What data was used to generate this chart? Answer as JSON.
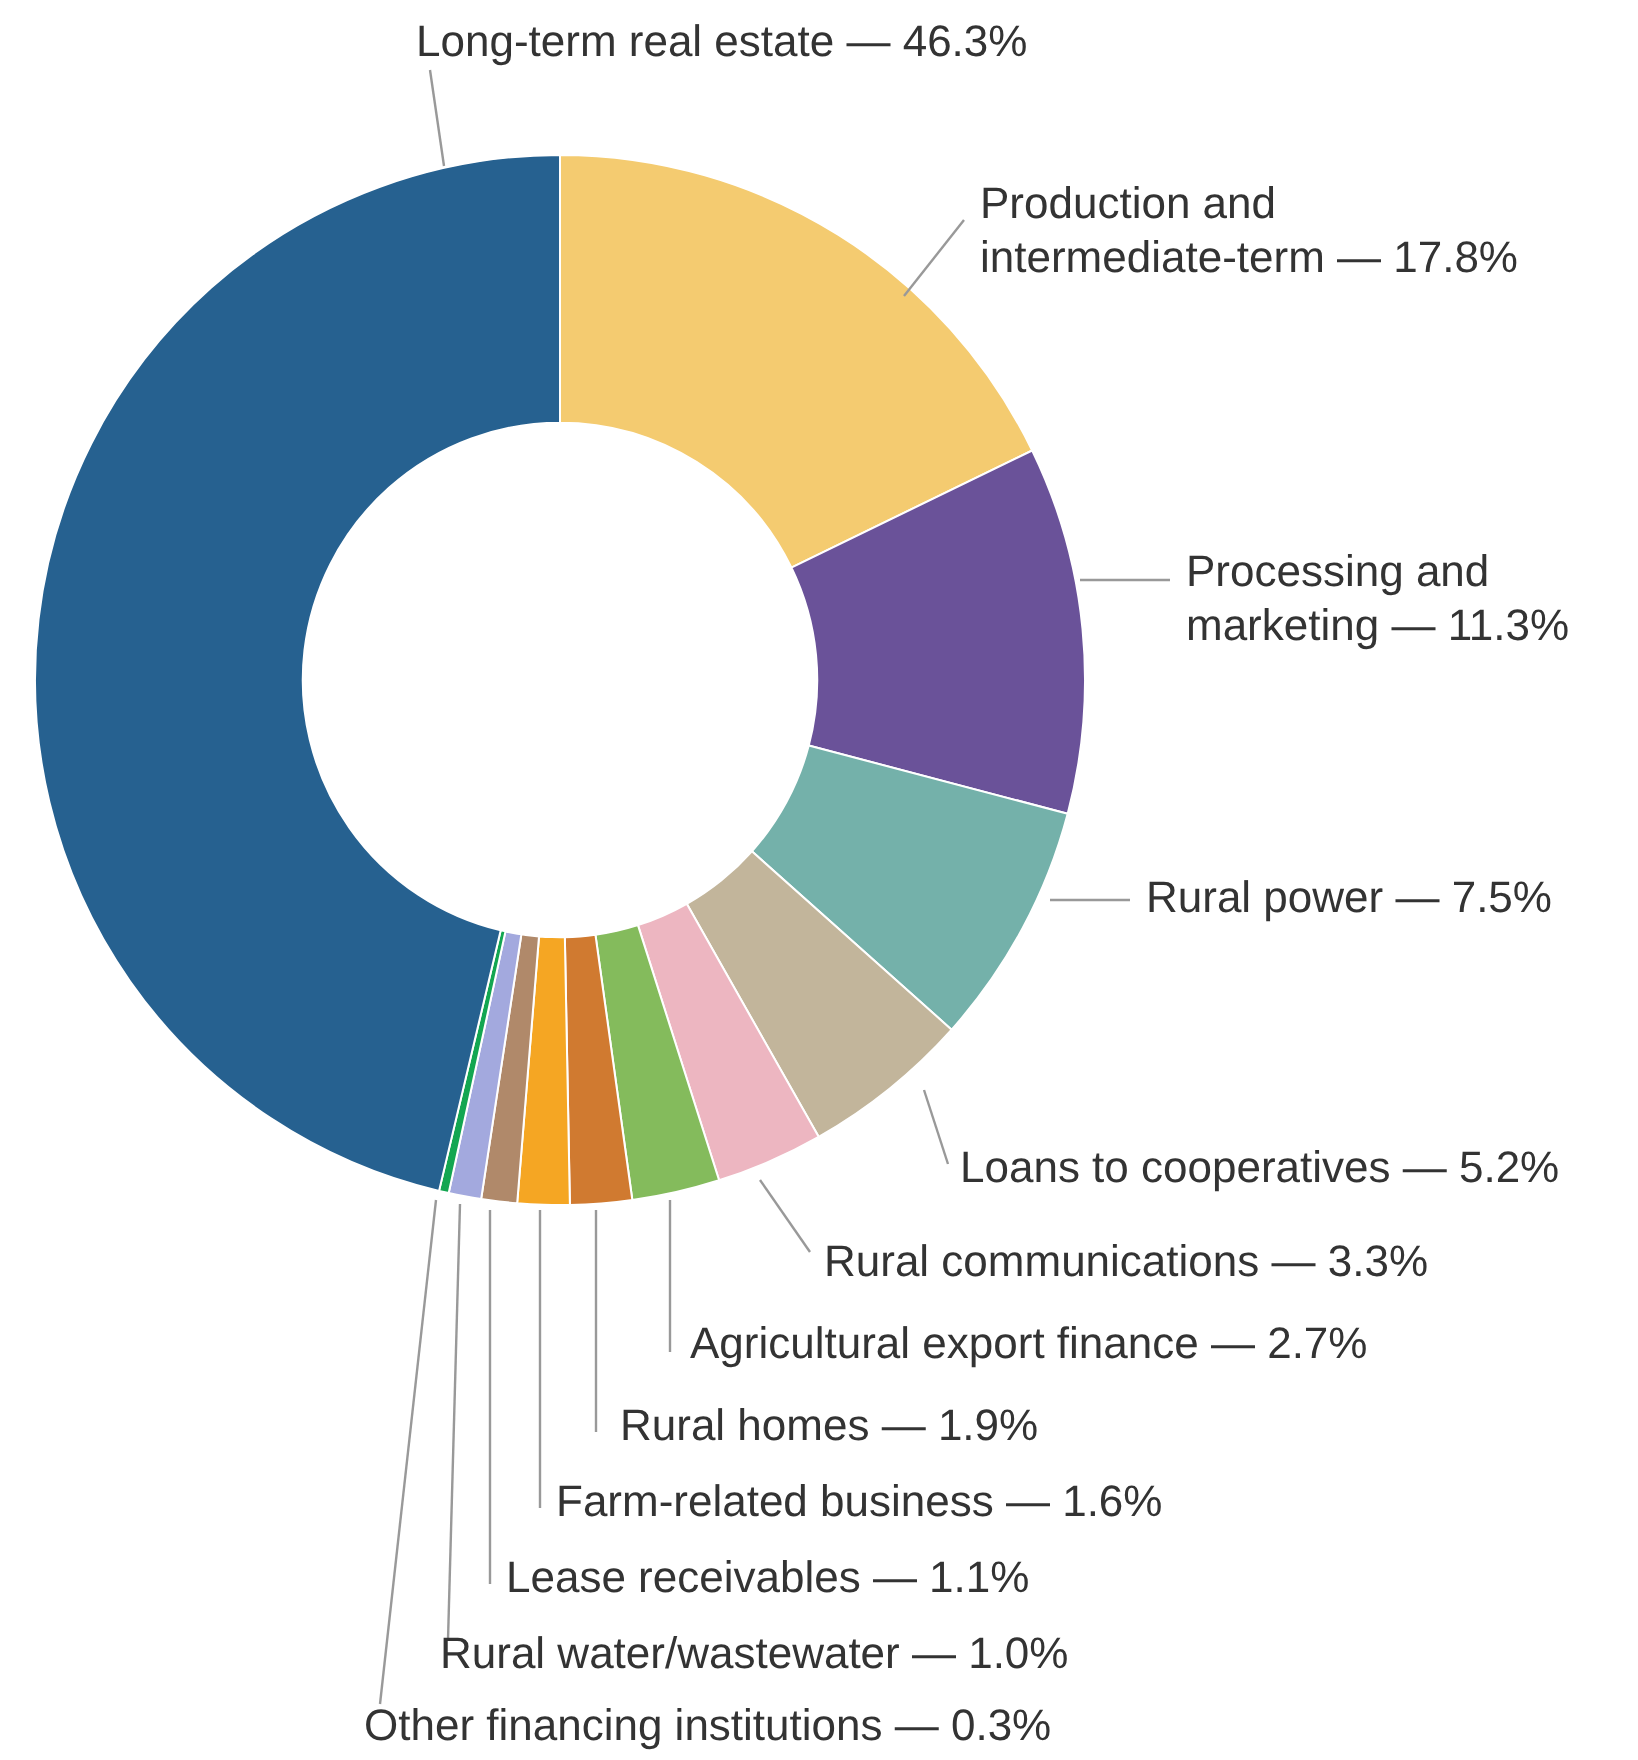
{
  "chart_data": {
    "type": "donut",
    "categories": [
      "Production and intermediate-term",
      "Processing and marketing",
      "Rural power",
      "Loans to cooperatives",
      "Rural communications",
      "Agricultural export finance",
      "Rural homes",
      "Farm-related business",
      "Lease receivables",
      "Rural water/wastewater",
      "Other financing institutions",
      "Long-term real estate"
    ],
    "values": [
      17.8,
      11.3,
      7.5,
      5.2,
      3.3,
      2.7,
      1.9,
      1.6,
      1.1,
      1.0,
      0.3,
      46.3
    ],
    "value_labels": [
      "— 17.8%",
      "— 11.3%",
      "— 7.5%",
      "— 5.2%",
      "— 3.3%",
      "— 2.7%",
      "— 1.9%",
      "— 1.6%",
      "— 1.1%",
      "— 1.0%",
      "— 0.3%",
      "— 46.3%"
    ],
    "colors": [
      "#f4cb70",
      "#6a5299",
      "#74b1aa",
      "#c2b59b",
      "#edb6c1",
      "#84bb5c",
      "#d07a30",
      "#f5a623",
      "#b0896a",
      "#a3a9de",
      "#13a651",
      "#266190"
    ],
    "legend": false
  }
}
